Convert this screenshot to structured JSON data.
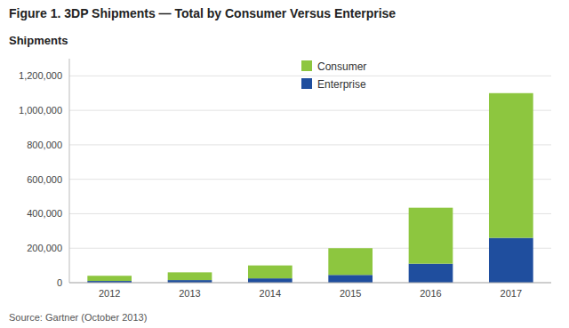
{
  "chart_data": {
    "type": "bar",
    "stacked": true,
    "title": "Figure 1. 3DP Shipments — Total by Consumer Versus Enterprise",
    "ylabel": "Shipments",
    "source": "Source: Gartner (October 2013)",
    "categories": [
      "2012",
      "2013",
      "2014",
      "2015",
      "2016",
      "2017"
    ],
    "series": [
      {
        "name": "Enterprise",
        "color": "#1f4e9e",
        "values": [
          10000,
          15000,
          25000,
          45000,
          110000,
          260000
        ]
      },
      {
        "name": "Consumer",
        "color": "#8dc63f",
        "values": [
          30000,
          45000,
          75000,
          155000,
          325000,
          840000
        ]
      }
    ],
    "ylim": [
      0,
      1300000
    ],
    "yticks": [
      0,
      {
        "value": 200000,
        "label": "200,000"
      },
      {
        "value": 400000,
        "label": "400,000"
      },
      {
        "value": 600000,
        "label": "600,000"
      },
      {
        "value": 800000,
        "label": "800,000"
      },
      {
        "value": 1000000,
        "label": "1,000,000"
      },
      {
        "value": 1200000,
        "label": "1,200,000"
      }
    ],
    "grid": true,
    "legend": "upper center"
  }
}
